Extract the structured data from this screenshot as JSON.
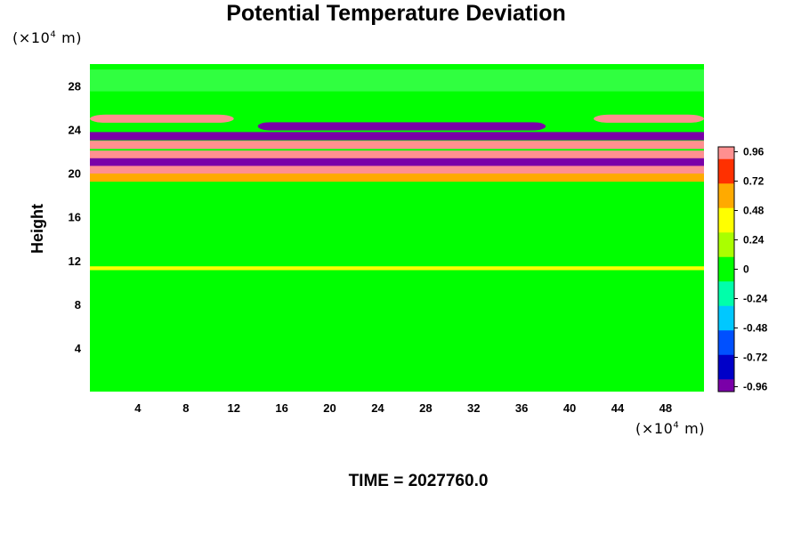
{
  "chart_data": {
    "type": "heatmap",
    "title": "Potential Temperature Deviation",
    "ylabel": "Height",
    "xlabel": "",
    "x_unit": "(×10⁴ m)",
    "y_unit": "(×10⁴ m)",
    "footer": "TIME = 2027760.0",
    "xlim": [
      0,
      51.2
    ],
    "ylim": [
      0,
      30
    ],
    "x_ticks": [
      4,
      8,
      12,
      16,
      20,
      24,
      28,
      32,
      36,
      40,
      44,
      48
    ],
    "y_ticks": [
      4,
      8,
      12,
      16,
      20,
      24,
      28
    ],
    "colorbar": {
      "ticks": [
        0.96,
        0.72,
        0.48,
        0.24,
        0,
        -0.24,
        -0.48,
        -0.72,
        -0.96
      ],
      "range": [
        -1.0,
        1.0
      ],
      "colors": [
        "#7a00a8",
        "#0000c8",
        "#0050ff",
        "#00c8ff",
        "#00ffaa",
        "#00ff00",
        "#aaff00",
        "#ffff00",
        "#ffaa00",
        "#ff3000",
        "#ff9090"
      ]
    },
    "field": {
      "description_bands": [
        {
          "y_center": 25.0,
          "value": 1.0,
          "x_gaps": [
            [
              12,
              42
            ]
          ]
        },
        {
          "y_center": 24.3,
          "value": -1.0,
          "x_range": [
            14,
            38
          ]
        },
        {
          "y_center": 23.4,
          "value": -1.0
        },
        {
          "y_center": 22.6,
          "value": 1.0
        },
        {
          "y_center": 21.7,
          "value": 0.9
        },
        {
          "y_center": 21.0,
          "value": -1.0
        },
        {
          "y_center": 20.3,
          "value": 1.0
        },
        {
          "y_center": 19.6,
          "value": 0.6
        },
        {
          "y_center": 11.3,
          "value": 0.35
        }
      ],
      "background_value": -0.05
    }
  }
}
